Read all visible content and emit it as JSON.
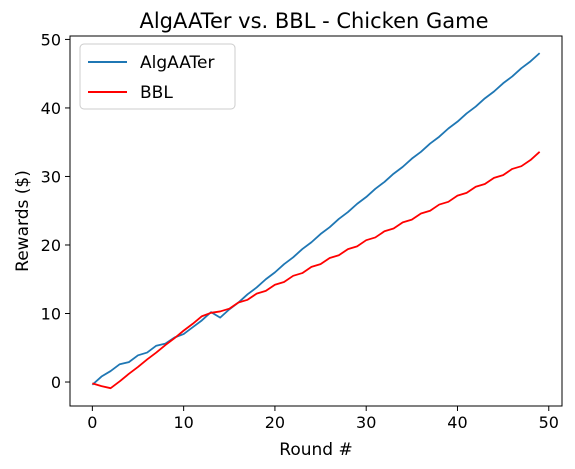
{
  "chart_data": {
    "type": "line",
    "title": "AlgAATer vs. BBL - Chicken Game",
    "xlabel": "Round #",
    "ylabel": "Rewards ($)",
    "xlim": [
      -2.45,
      51.45
    ],
    "ylim": [
      -3.5,
      50.5
    ],
    "xticks": [
      0,
      10,
      20,
      30,
      40,
      50
    ],
    "yticks": [
      0,
      10,
      20,
      30,
      40,
      50
    ],
    "grid": false,
    "legend_position": "top-left",
    "x": [
      0,
      1,
      2,
      3,
      4,
      5,
      6,
      7,
      8,
      9,
      10,
      11,
      12,
      13,
      14,
      15,
      16,
      17,
      18,
      19,
      20,
      21,
      22,
      23,
      24,
      25,
      26,
      27,
      28,
      29,
      30,
      31,
      32,
      33,
      34,
      35,
      36,
      37,
      38,
      39,
      40,
      41,
      42,
      43,
      44,
      45,
      46,
      47,
      48,
      49
    ],
    "series": [
      {
        "name": "AlgAATer",
        "color": "#1f77b4",
        "values": [
          -0.4,
          0.8,
          1.6,
          2.6,
          2.9,
          3.9,
          4.3,
          5.3,
          5.6,
          6.5,
          7.0,
          8.0,
          9.0,
          10.2,
          9.4,
          10.6,
          11.6,
          12.8,
          13.8,
          15.0,
          16.0,
          17.2,
          18.2,
          19.4,
          20.4,
          21.6,
          22.6,
          23.8,
          24.8,
          26.0,
          27.0,
          28.2,
          29.2,
          30.4,
          31.4,
          32.6,
          33.6,
          34.8,
          35.8,
          37.0,
          38.0,
          39.2,
          40.2,
          41.4,
          42.4,
          43.6,
          44.6,
          45.8,
          46.8,
          48.0
        ]
      },
      {
        "name": "BBL",
        "color": "#ff0000",
        "values": [
          -0.2,
          -0.6,
          -0.9,
          0.1,
          1.2,
          2.2,
          3.3,
          4.3,
          5.4,
          6.4,
          7.5,
          8.5,
          9.6,
          10.1,
          10.3,
          10.7,
          11.6,
          12.0,
          12.9,
          13.3,
          14.2,
          14.6,
          15.5,
          15.9,
          16.8,
          17.2,
          18.1,
          18.5,
          19.4,
          19.8,
          20.7,
          21.1,
          22.0,
          22.4,
          23.3,
          23.7,
          24.6,
          25.0,
          25.9,
          26.3,
          27.2,
          27.6,
          28.5,
          28.9,
          29.8,
          30.2,
          31.1,
          31.5,
          32.4,
          33.6
        ]
      }
    ]
  }
}
